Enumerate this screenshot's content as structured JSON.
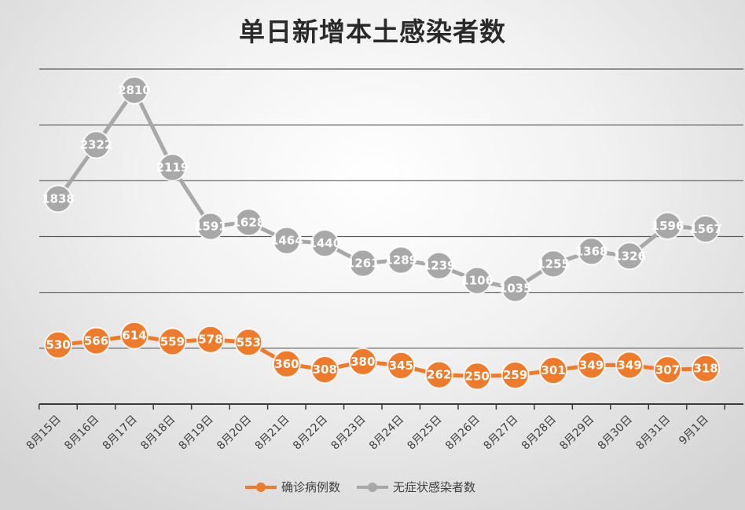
{
  "chart_data": {
    "type": "line",
    "title": "单日新增本土感染者数",
    "xlabel": "",
    "ylabel": "",
    "ylim": [
      0,
      3000
    ],
    "grid": true,
    "legend_position": "bottom",
    "categories": [
      "8月15日",
      "8月16日",
      "8月17日",
      "8月18日",
      "8月19日",
      "8月20日",
      "8月21日",
      "8月22日",
      "8月23日",
      "8月24日",
      "8月25日",
      "8月26日",
      "8月27日",
      "8月28日",
      "8月29日",
      "8月30日",
      "8月31日",
      "9月1日"
    ],
    "series": [
      {
        "name": "确诊病例数",
        "color": "#ee7a2c",
        "values": [
          530,
          566,
          614,
          559,
          578,
          553,
          360,
          308,
          380,
          345,
          262,
          250,
          259,
          301,
          349,
          349,
          307,
          318
        ]
      },
      {
        "name": "无症状感染者数",
        "color": "#a8a8a8",
        "values": [
          1838,
          2322,
          2810,
          2119,
          1591,
          1628,
          1464,
          1440,
          1261,
          1289,
          1239,
          1106,
          1035,
          1255,
          1368,
          1326,
          1596,
          1567
        ]
      }
    ]
  }
}
